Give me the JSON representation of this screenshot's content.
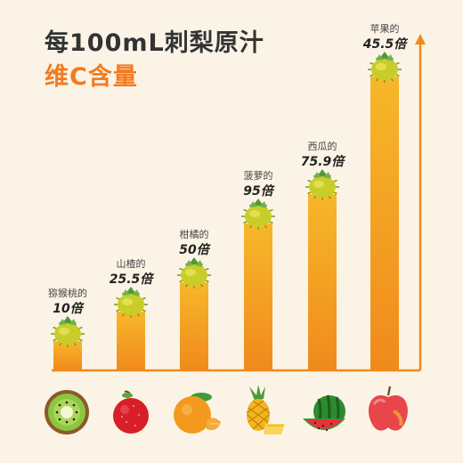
{
  "title": "每100mL刺梨原汁",
  "subtitle": "维C含量",
  "colors": {
    "background": "#fbf4e6",
    "bar_top": "#f7b72a",
    "bar_bottom": "#f08a1c",
    "title_dark": "#333333",
    "title_accent": "#f47b20",
    "axis": "#f08a1c"
  },
  "chart_data": {
    "type": "bar",
    "title": "每100mL刺梨原汁",
    "subtitle": "维C含量",
    "categories": [
      "猕猴桃",
      "山楂",
      "柑橘",
      "菠萝",
      "西瓜",
      "苹果"
    ],
    "labels_top": [
      "猕猴桃的",
      "山楂的",
      "柑橘的",
      "菠萝的",
      "西瓜的",
      "苹果的"
    ],
    "labels_value": [
      "10倍",
      "25.5倍",
      "50倍",
      "95倍",
      "75.9倍",
      "45.5倍"
    ],
    "values": [
      10,
      25.5,
      50,
      95,
      75.9,
      45.5
    ],
    "bar_heights_relative": [
      1,
      2,
      3,
      5,
      6,
      10
    ],
    "xlabel": "",
    "ylabel": "",
    "grid": false,
    "legend": "none",
    "icons": [
      "kiwi-icon",
      "hawthorn-icon",
      "orange-icon",
      "pineapple-icon",
      "watermelon-icon",
      "apple-icon"
    ],
    "bar_top_icon": "prickly-pear-icon"
  }
}
